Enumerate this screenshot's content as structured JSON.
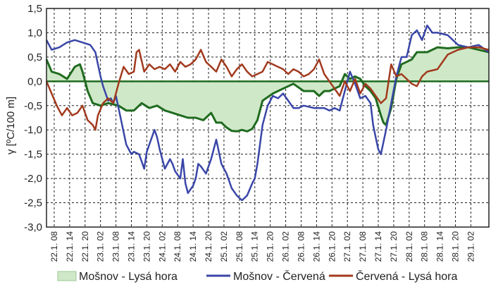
{
  "chart_data": {
    "type": "line",
    "ylabel": "γ [ºC/100 m]",
    "ylim": [
      -3.0,
      1.5
    ],
    "yticks": [
      1.5,
      1.0,
      0.5,
      0.0,
      -0.5,
      -1.0,
      -1.5,
      -2.0,
      -2.5,
      -3.0
    ],
    "ytick_labels": [
      "1,5",
      "1,0",
      "0,5",
      "0,0",
      "-0,5",
      "-1,0",
      "-1,5",
      "-2,0",
      "-2,5",
      "-3,0"
    ],
    "x_range_hours": [
      0,
      172
    ],
    "x_tick_labels": [
      "22.1. 08",
      "22.1. 14",
      "22.1. 20",
      "23.1. 02",
      "23.1. 08",
      "23.1. 14",
      "23.1. 20",
      "24.1. 02",
      "24.1. 08",
      "24.1. 14",
      "24.1. 20",
      "25.1. 02",
      "25.1. 08",
      "25.1. 14",
      "25.1. 20",
      "26.1. 02",
      "26.1. 08",
      "26.1. 14",
      "26.1. 20",
      "27.1. 02",
      "27.1. 08",
      "27.1. 14",
      "27.1. 20",
      "28.1. 02",
      "28.1. 08",
      "28.1. 14",
      "28.1. 20",
      "29.1. 02"
    ],
    "grid": true,
    "legend_position": "bottom",
    "colors": {
      "Mošnov - Lysá hora": "#1f6b1f",
      "Mošnov - Lysá hora fill": "#cfe8c8",
      "Mošnov - Červená": "#3a46a8",
      "Červená - Lysá hora": "#a23a1e"
    },
    "series": [
      {
        "name": "Mošnov - Lysá hora",
        "style": "area",
        "x": [
          0,
          2,
          5,
          8,
          11,
          13,
          14,
          15,
          16,
          18,
          21,
          24,
          28,
          31,
          34,
          37,
          40,
          43,
          46,
          49,
          52,
          55,
          58,
          61,
          64,
          66,
          68,
          70,
          72,
          74,
          76,
          78,
          80,
          82,
          84,
          88,
          92,
          96,
          100,
          104,
          106,
          108,
          110,
          112,
          114,
          116,
          118,
          120,
          122,
          124,
          126,
          128,
          130,
          131,
          132,
          134,
          136,
          138,
          140,
          142,
          144,
          148,
          152,
          156,
          160,
          164,
          168,
          172
        ],
        "y": [
          0.45,
          0.2,
          0.15,
          0.05,
          0.3,
          0.35,
          0.2,
          0.0,
          -0.2,
          -0.45,
          -0.5,
          -0.45,
          -0.5,
          -0.6,
          -0.6,
          -0.45,
          -0.55,
          -0.5,
          -0.6,
          -0.65,
          -0.7,
          -0.75,
          -0.75,
          -0.8,
          -0.65,
          -0.85,
          -0.85,
          -0.95,
          -1.02,
          -1.03,
          -1.0,
          -1.03,
          -0.98,
          -0.8,
          -0.4,
          -0.25,
          -0.15,
          -0.05,
          -0.2,
          -0.2,
          -0.3,
          -0.2,
          -0.2,
          -0.15,
          -0.1,
          0.15,
          0.05,
          0.1,
          0.05,
          -0.1,
          -0.2,
          -0.35,
          -0.7,
          -0.85,
          -0.9,
          -0.55,
          0.05,
          0.35,
          0.4,
          0.45,
          0.6,
          0.6,
          0.7,
          0.68,
          0.7,
          0.7,
          0.65,
          0.6
        ]
      },
      {
        "name": "Mošnov - Červená",
        "style": "line",
        "x": [
          0,
          2,
          5,
          8,
          11,
          14,
          17,
          19,
          20,
          21,
          22,
          24,
          25,
          26,
          27,
          29,
          31,
          32,
          33,
          34,
          36,
          37,
          38,
          39,
          40,
          42,
          43,
          44,
          46,
          48,
          49,
          50,
          52,
          53,
          54,
          55,
          57,
          58,
          59,
          60,
          62,
          64,
          66,
          68,
          70,
          72,
          74,
          76,
          78,
          80,
          81,
          82,
          84,
          86,
          88,
          90,
          92,
          94,
          96,
          98,
          100,
          104,
          108,
          110,
          112,
          114,
          116,
          118,
          120,
          122,
          124,
          126,
          127,
          128,
          129,
          130,
          132,
          134,
          136,
          138,
          140,
          142,
          144,
          146,
          148,
          150,
          152,
          156,
          160,
          164,
          168,
          172
        ],
        "y": [
          0.85,
          0.65,
          0.7,
          0.8,
          0.85,
          0.8,
          0.75,
          0.6,
          0.35,
          0.1,
          -0.1,
          -0.4,
          -0.35,
          -0.45,
          -0.3,
          -0.8,
          -1.3,
          -1.4,
          -1.5,
          -1.45,
          -1.5,
          -1.65,
          -1.8,
          -1.45,
          -1.3,
          -1.0,
          -1.15,
          -1.4,
          -1.8,
          -1.6,
          -1.7,
          -1.85,
          -2.0,
          -1.6,
          -2.1,
          -2.3,
          -2.15,
          -2.0,
          -1.7,
          -1.75,
          -1.9,
          -1.6,
          -1.2,
          -1.7,
          -1.9,
          -2.2,
          -2.35,
          -2.45,
          -2.35,
          -2.1,
          -2.0,
          -1.7,
          -0.9,
          -0.5,
          -0.3,
          -0.35,
          -0.25,
          -0.4,
          -0.55,
          -0.55,
          -0.5,
          -0.55,
          -0.55,
          -0.6,
          -0.55,
          -0.6,
          -0.2,
          0.2,
          -0.05,
          -0.35,
          -0.3,
          -0.45,
          -0.9,
          -1.15,
          -1.4,
          -1.5,
          -1.0,
          -0.45,
          0.1,
          0.5,
          0.5,
          0.95,
          1.05,
          0.85,
          1.15,
          1.0,
          1.0,
          0.95,
          0.75,
          0.7,
          0.75,
          0.6
        ]
      },
      {
        "name": "Červená - Lysá hora",
        "style": "line",
        "x": [
          0,
          2,
          4,
          6,
          8,
          10,
          12,
          14,
          16,
          18,
          19,
          20,
          22,
          24,
          26,
          28,
          30,
          32,
          34,
          35,
          36,
          38,
          40,
          42,
          44,
          46,
          48,
          50,
          52,
          54,
          56,
          58,
          60,
          62,
          64,
          66,
          68,
          70,
          72,
          74,
          76,
          78,
          80,
          82,
          84,
          86,
          88,
          90,
          92,
          94,
          96,
          98,
          100,
          102,
          104,
          106,
          108,
          110,
          112,
          114,
          116,
          118,
          120,
          122,
          124,
          126,
          128,
          130,
          132,
          134,
          136,
          138,
          140,
          142,
          144,
          146,
          148,
          152,
          156,
          160,
          164,
          168,
          172
        ],
        "y": [
          0.0,
          -0.25,
          -0.5,
          -0.7,
          -0.55,
          -0.7,
          -0.65,
          -0.5,
          -0.8,
          -0.9,
          -1.0,
          -0.7,
          -0.45,
          -0.35,
          -0.45,
          -0.05,
          0.3,
          0.15,
          0.2,
          0.6,
          0.65,
          0.2,
          0.35,
          0.25,
          0.3,
          0.25,
          0.35,
          0.2,
          0.4,
          0.3,
          0.35,
          0.45,
          0.65,
          0.4,
          0.3,
          0.2,
          0.45,
          0.3,
          0.1,
          0.25,
          0.35,
          0.2,
          0.1,
          0.15,
          0.2,
          0.4,
          0.35,
          0.3,
          0.25,
          0.15,
          0.25,
          0.2,
          0.1,
          0.15,
          0.25,
          0.45,
          0.15,
          0.0,
          -0.15,
          -0.3,
          0.0,
          -0.2,
          0.05,
          -0.25,
          -0.05,
          -0.15,
          -0.3,
          -0.45,
          -0.35,
          0.35,
          0.1,
          0.15,
          0.05,
          -0.05,
          -0.1,
          0.1,
          0.2,
          0.25,
          0.55,
          0.65,
          0.7,
          0.7,
          0.65
        ]
      }
    ]
  }
}
